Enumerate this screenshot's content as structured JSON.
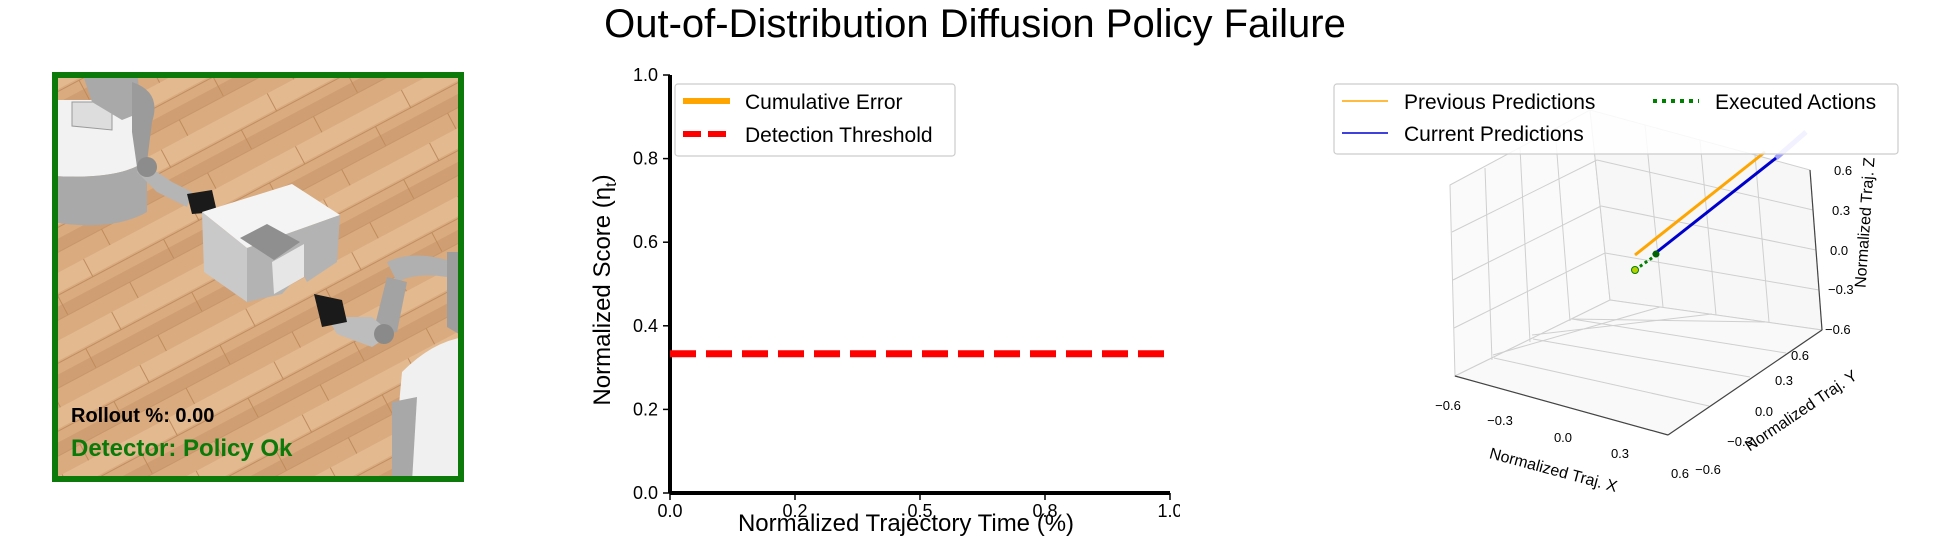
{
  "figure": {
    "title": "Out-of-Distribution Diffusion Policy Failure"
  },
  "sim_panel": {
    "rollout_text": "Rollout %: 0.00",
    "detector_text": "Detector: Policy Ok",
    "border_color": "#0b7a0b",
    "detector_color": "#0b7a0b"
  },
  "chart_data": [
    {
      "type": "line",
      "title": "",
      "xlabel": "Normalized Trajectory Time (%)",
      "ylabel": "Normalized Score (η",
      "ylabel_sub": "t",
      "ylabel_close": ")",
      "xlim": [
        0.0,
        1.0
      ],
      "ylim": [
        0.0,
        1.0
      ],
      "xticks": [
        "0.0",
        "0.2",
        "0.5",
        "0.8",
        "1.0"
      ],
      "xtick_values": [
        0.0,
        0.25,
        0.5,
        0.75,
        1.0
      ],
      "yticks": [
        "0.0",
        "0.2",
        "0.4",
        "0.6",
        "0.8",
        "1.0"
      ],
      "ytick_values": [
        0.0,
        0.2,
        0.4,
        0.6,
        0.8,
        1.0
      ],
      "grid": false,
      "legend_placement": "top-left",
      "series": [
        {
          "name": "Cumulative Error",
          "color": "#ffa500",
          "style": "solid",
          "x": [],
          "y": []
        },
        {
          "name": "Detection Threshold",
          "color": "#ff0000",
          "style": "dashed",
          "x": [
            0.0,
            1.0
          ],
          "y": [
            0.333,
            0.333
          ]
        }
      ]
    },
    {
      "type": "line",
      "title": "",
      "xlabel": "Normalized Traj. X",
      "ylabel": "Normalized Traj. Y",
      "zlabel": "Normalized Traj. Z",
      "xlim": [
        -0.6,
        0.6
      ],
      "ylim": [
        -0.6,
        0.6
      ],
      "zlim": [
        -0.6,
        0.6
      ],
      "xticks": [
        "−0.6",
        "−0.3",
        "0.0",
        "0.3",
        "0.6"
      ],
      "yticks": [
        "−0.6",
        "−0.3",
        "0.0",
        "0.3",
        "0.6"
      ],
      "zticks": [
        "−0.6",
        "−0.3",
        "0.0",
        "0.3",
        "0.6"
      ],
      "grid": true,
      "legend_placement": "top",
      "legend": [
        {
          "name": "Previous Predictions",
          "color": "#ffa500",
          "style": "solid"
        },
        {
          "name": "Executed Actions",
          "color": "#008000",
          "style": "dotted"
        },
        {
          "name": "Current Predictions",
          "color": "#0000cd",
          "style": "solid"
        }
      ]
    }
  ]
}
